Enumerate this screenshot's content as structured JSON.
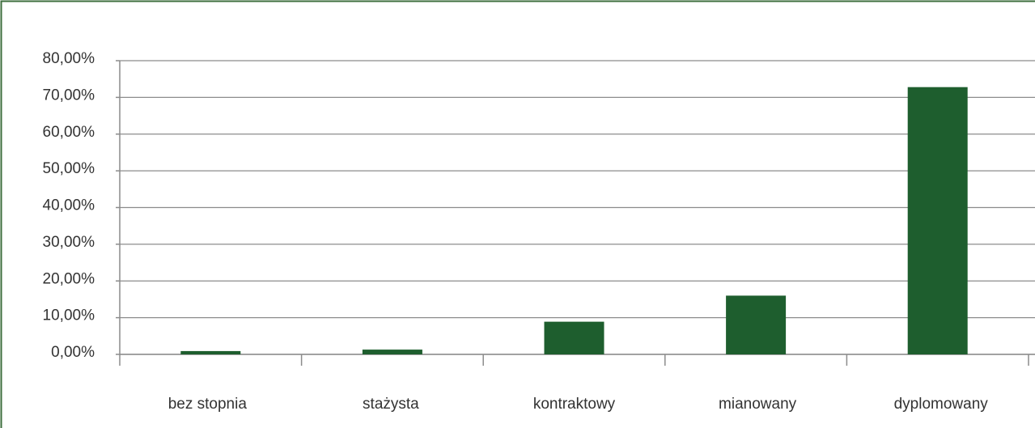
{
  "chart_data": {
    "type": "bar",
    "categories": [
      "bez stopnia",
      "stażysta",
      "kontraktowy",
      "mianowany",
      "dyplomowany"
    ],
    "values": [
      0.9,
      1.3,
      8.9,
      16.0,
      72.8
    ],
    "color": "#1e5e2e",
    "ylim": [
      0,
      80
    ],
    "yticks": [
      {
        "value": 0,
        "label": "0,00%"
      },
      {
        "value": 10,
        "label": "10,00%"
      },
      {
        "value": 20,
        "label": "20,00%"
      },
      {
        "value": 30,
        "label": "30,00%"
      },
      {
        "value": 40,
        "label": "40,00%"
      },
      {
        "value": 50,
        "label": "50,00%"
      },
      {
        "value": 60,
        "label": "60,00%"
      },
      {
        "value": 70,
        "label": "70,00%"
      },
      {
        "value": 80,
        "label": "80,00%"
      }
    ],
    "grid": true
  }
}
